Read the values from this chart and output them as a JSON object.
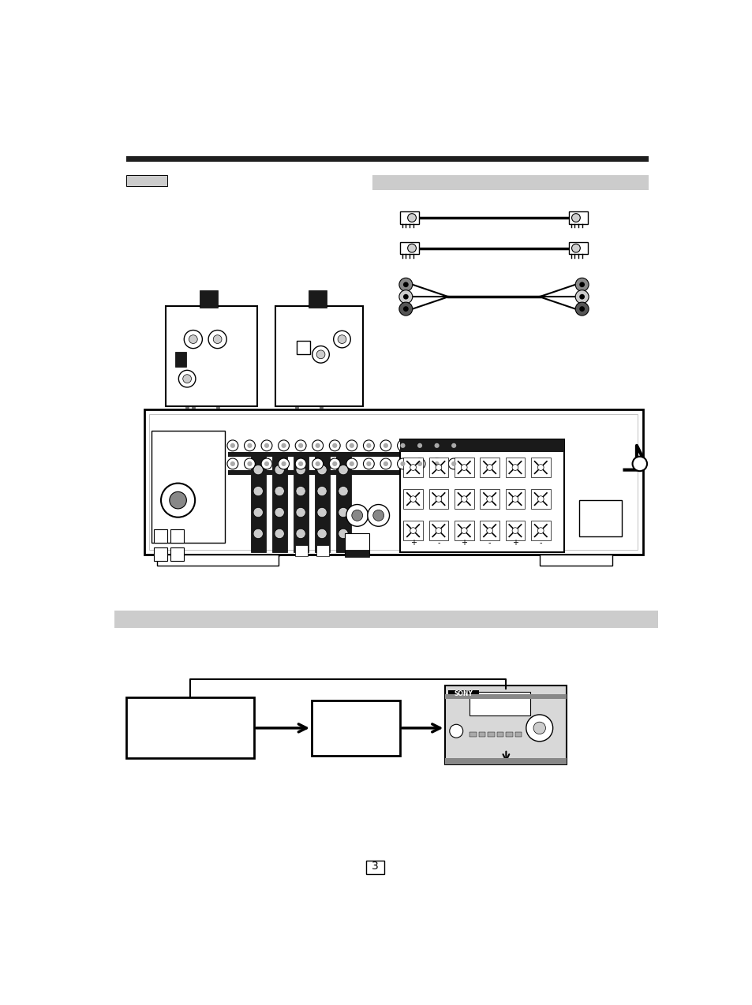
{
  "bg_color": "#ffffff",
  "top_bar_color": "#1e1e1e",
  "gray_label_color": "#cccccc",
  "dark_gray": "#555555",
  "cable_gray": "#888888",
  "black": "#000000"
}
